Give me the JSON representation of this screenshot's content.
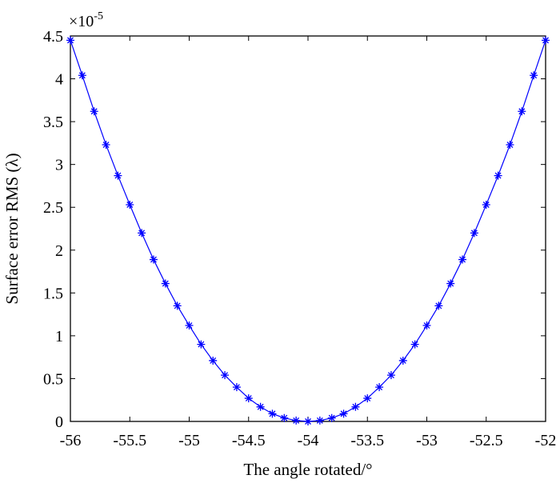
{
  "chart_data": {
    "type": "line",
    "xlabel": "The angle rotated/°",
    "ylabel": "Surface error RMS (λ)",
    "y_multiplier": "×10",
    "y_multiplier_exponent": "-5",
    "xlim": [
      -56,
      -52
    ],
    "ylim": [
      0,
      4.5
    ],
    "x_ticks": [
      "-56",
      "-55.5",
      "-55",
      "-54.5",
      "-54",
      "-53.5",
      "-53",
      "-52.5",
      "-52"
    ],
    "y_ticks": [
      "0",
      "0.5",
      "1",
      "1.5",
      "2",
      "2.5",
      "3",
      "3.5",
      "4",
      "4.5"
    ],
    "series": [
      {
        "marker": "asterisk",
        "color": "#0000ff",
        "x": [
          -56.0,
          -55.9,
          -55.8,
          -55.7,
          -55.6,
          -55.5,
          -55.4,
          -55.3,
          -55.2,
          -55.1,
          -55.0,
          -54.9,
          -54.8,
          -54.7,
          -54.6,
          -54.5,
          -54.4,
          -54.3,
          -54.2,
          -54.1,
          -54.0,
          -53.9,
          -53.8,
          -53.7,
          -53.6,
          -53.5,
          -53.4,
          -53.3,
          -53.2,
          -53.1,
          -53.0,
          -52.9,
          -52.8,
          -52.7,
          -52.6,
          -52.5,
          -52.4,
          -52.3,
          -52.2,
          -52.1,
          -52.0
        ],
        "y": [
          4.45,
          4.04,
          3.62,
          3.23,
          2.87,
          2.53,
          2.2,
          1.89,
          1.61,
          1.35,
          1.12,
          0.9,
          0.71,
          0.54,
          0.4,
          0.27,
          0.17,
          0.09,
          0.04,
          0.01,
          0.0,
          0.01,
          0.04,
          0.09,
          0.17,
          0.27,
          0.4,
          0.54,
          0.71,
          0.9,
          1.12,
          1.35,
          1.61,
          1.89,
          2.2,
          2.53,
          2.87,
          3.23,
          3.62,
          4.04,
          4.45
        ]
      }
    ],
    "grid": false,
    "box": true
  }
}
